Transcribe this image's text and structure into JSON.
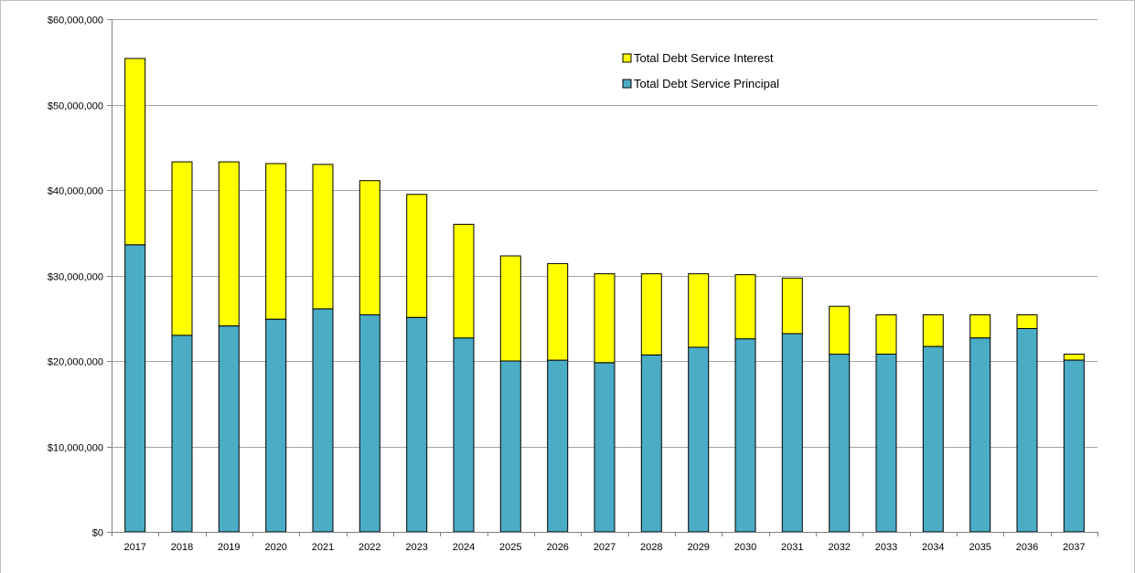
{
  "chart_data": {
    "type": "bar",
    "stacked": true,
    "categories": [
      "2017",
      "2018",
      "2019",
      "2020",
      "2021",
      "2022",
      "2023",
      "2024",
      "2025",
      "2026",
      "2027",
      "2028",
      "2029",
      "2030",
      "2031",
      "2032",
      "2033",
      "2034",
      "2035",
      "2036",
      "2037"
    ],
    "series": [
      {
        "name": "Total Debt Service Principal",
        "color": "#4bacc6",
        "values": [
          33600000,
          23000000,
          24100000,
          24900000,
          26100000,
          25400000,
          25100000,
          22700000,
          20000000,
          20100000,
          19800000,
          20700000,
          21600000,
          22600000,
          23200000,
          20800000,
          20800000,
          21700000,
          22700000,
          23800000,
          20100000
        ]
      },
      {
        "name": "Total Debt Service Interest",
        "color": "#ffff00",
        "values": [
          21800000,
          20300000,
          19200000,
          18200000,
          16900000,
          15700000,
          14400000,
          13300000,
          12300000,
          11300000,
          10400000,
          9500000,
          8600000,
          7500000,
          6500000,
          5600000,
          4600000,
          3700000,
          2700000,
          1600000,
          700000
        ]
      }
    ],
    "title": "",
    "xlabel": "",
    "ylabel": "",
    "ylim": [
      0,
      60000000
    ],
    "yticks": [
      0,
      10000000,
      20000000,
      30000000,
      40000000,
      50000000,
      60000000
    ],
    "ytick_labels": [
      "$0",
      "$10,000,000",
      "$20,000,000",
      "$30,000,000",
      "$40,000,000",
      "$50,000,000",
      "$60,000,000"
    ],
    "grid": true,
    "legend_position": "top-right",
    "legend_order": [
      "Total Debt Service Interest",
      "Total Debt Service Principal"
    ]
  }
}
